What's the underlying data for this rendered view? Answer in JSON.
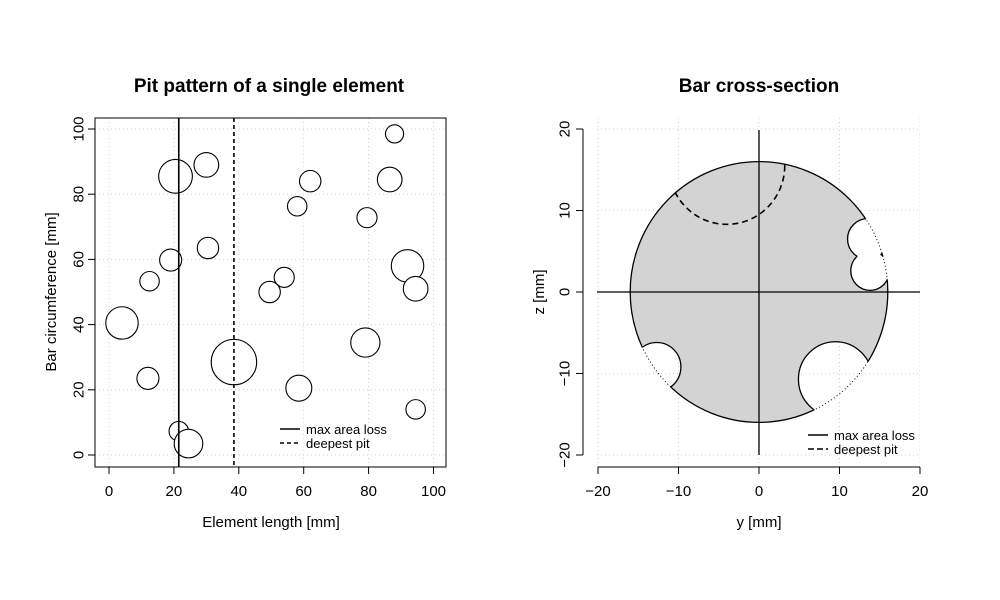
{
  "chart_data": [
    {
      "type": "scatter",
      "title": "Pit pattern of a single element",
      "xlabel": "Element length [mm]",
      "ylabel": "Bar circumference [mm]",
      "xlim": [
        -4,
        104
      ],
      "ylim": [
        -4,
        104
      ],
      "xticks": [
        0,
        20,
        40,
        60,
        80,
        100
      ],
      "yticks": [
        0,
        20,
        40,
        60,
        80,
        100
      ],
      "grid": true,
      "pits": [
        {
          "x": 20.5,
          "y": 85.5,
          "r": 5.2
        },
        {
          "x": 30.0,
          "y": 89.0,
          "r": 3.8
        },
        {
          "x": 19.0,
          "y": 59.8,
          "r": 3.4
        },
        {
          "x": 30.5,
          "y": 63.5,
          "r": 3.3
        },
        {
          "x": 12.5,
          "y": 53.3,
          "r": 3.0
        },
        {
          "x": 4.0,
          "y": 40.5,
          "r": 5.0
        },
        {
          "x": 12.0,
          "y": 23.5,
          "r": 3.4
        },
        {
          "x": 21.5,
          "y": 7.3,
          "r": 3.0
        },
        {
          "x": 24.5,
          "y": 3.5,
          "r": 4.4
        },
        {
          "x": 38.5,
          "y": 28.5,
          "r": 7.0
        },
        {
          "x": 49.5,
          "y": 50.0,
          "r": 3.3
        },
        {
          "x": 54.0,
          "y": 54.5,
          "r": 3.1
        },
        {
          "x": 58.0,
          "y": 76.3,
          "r": 3.0
        },
        {
          "x": 62.0,
          "y": 84.0,
          "r": 3.3
        },
        {
          "x": 58.5,
          "y": 20.5,
          "r": 4.0
        },
        {
          "x": 79.5,
          "y": 72.8,
          "r": 3.1
        },
        {
          "x": 79.0,
          "y": 34.5,
          "r": 4.5
        },
        {
          "x": 86.5,
          "y": 84.5,
          "r": 3.8
        },
        {
          "x": 88.0,
          "y": 98.5,
          "r": 2.8
        },
        {
          "x": 92.0,
          "y": 58.0,
          "r": 5.0
        },
        {
          "x": 94.5,
          "y": 51.0,
          "r": 3.8
        },
        {
          "x": 94.5,
          "y": 14.0,
          "r": 3.0
        }
      ],
      "vlines": [
        {
          "name": "max area loss",
          "x": 21.5,
          "style": "solid"
        },
        {
          "name": "deepest pit",
          "x": 38.5,
          "style": "dashed"
        }
      ],
      "legend": {
        "position": "bottom-right",
        "entries": [
          "max area loss",
          "deepest pit"
        ]
      }
    },
    {
      "type": "area",
      "title": "Bar cross-section",
      "xlabel": "y [mm]",
      "ylabel": "z [mm]",
      "xlim": [
        -20,
        20
      ],
      "ylim": [
        -20,
        20
      ],
      "xticks": [
        -20,
        -10,
        0,
        10,
        20
      ],
      "yticks": [
        -20,
        -10,
        0,
        10,
        20
      ],
      "xtick_labels": [
        "−20",
        "−10",
        "0",
        "10",
        "20"
      ],
      "ytick_labels": [
        "−20",
        "−10",
        "0",
        "10",
        "20"
      ],
      "grid": true,
      "bar_radius": 16,
      "fill_color": "#d3d3d3",
      "pits": [
        {
          "y": 13.5,
          "z": 6.5,
          "r": 2.5
        },
        {
          "y": 13.8,
          "z": 2.6,
          "r": 2.4
        },
        {
          "y": -12.7,
          "z": -9.2,
          "r": 3.0
        },
        {
          "y": 9.5,
          "z": -10.7,
          "r": 4.6
        }
      ],
      "deepest_pit": {
        "y": -4.0,
        "z": 15.5,
        "r": 7.2
      },
      "legend": {
        "position": "bottom-right",
        "entries": [
          "max area loss",
          "deepest pit"
        ]
      }
    }
  ]
}
